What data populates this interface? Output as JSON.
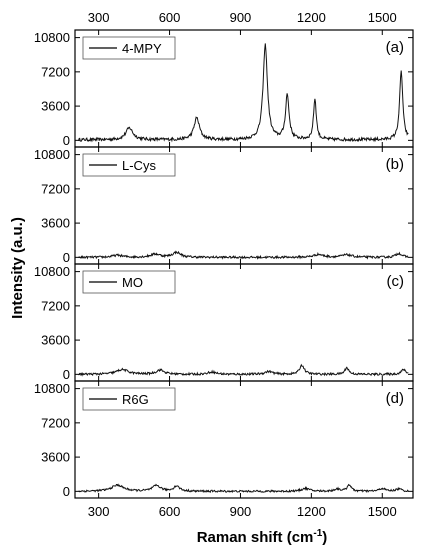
{
  "chart_data": {
    "type": "line",
    "xlabel_main": "Raman shift (cm",
    "xlabel_sup": "-1",
    "xlabel_close": ")",
    "ylabel": "Intensity (a.u.)",
    "xlim": [
      200,
      1630
    ],
    "x_ticks": [
      300,
      600,
      900,
      1200,
      1500
    ],
    "x_tick_labels": [
      "300",
      "600",
      "900",
      "1200",
      "1500"
    ],
    "y_ticks": [
      0,
      3600,
      7200,
      10800
    ],
    "y_tick_labels": [
      "0",
      "3600",
      "7200",
      "10800"
    ],
    "ylim": [
      -700,
      11600
    ],
    "panels": [
      {
        "letter": "(a)",
        "legend": "4-MPY",
        "baseline": 60,
        "noise": 160,
        "peaks": [
          {
            "x": 430,
            "amp": 1250,
            "w": 18
          },
          {
            "x": 715,
            "amp": 2300,
            "w": 14
          },
          {
            "x": 1005,
            "amp": 9950,
            "w": 11
          },
          {
            "x": 1098,
            "amp": 4700,
            "w": 9
          },
          {
            "x": 1215,
            "amp": 4300,
            "w": 7
          },
          {
            "x": 1580,
            "amp": 7200,
            "w": 8
          }
        ]
      },
      {
        "letter": "(b)",
        "legend": "L-Cys",
        "baseline": 0,
        "noise": 110,
        "peaks": [
          {
            "x": 380,
            "amp": 220,
            "w": 25
          },
          {
            "x": 540,
            "amp": 330,
            "w": 25
          },
          {
            "x": 630,
            "amp": 520,
            "w": 20
          },
          {
            "x": 1230,
            "amp": 300,
            "w": 25
          },
          {
            "x": 1350,
            "amp": 260,
            "w": 25
          },
          {
            "x": 1570,
            "amp": 420,
            "w": 15
          }
        ]
      },
      {
        "letter": "(c)",
        "legend": "MO",
        "baseline": 0,
        "noise": 110,
        "peaks": [
          {
            "x": 400,
            "amp": 500,
            "w": 30
          },
          {
            "x": 560,
            "amp": 450,
            "w": 20
          },
          {
            "x": 780,
            "amp": 250,
            "w": 20
          },
          {
            "x": 1020,
            "amp": 300,
            "w": 20
          },
          {
            "x": 1160,
            "amp": 950,
            "w": 12
          },
          {
            "x": 1350,
            "amp": 700,
            "w": 10
          },
          {
            "x": 1590,
            "amp": 500,
            "w": 12
          }
        ]
      },
      {
        "letter": "(d)",
        "legend": "R6G",
        "baseline": 0,
        "noise": 100,
        "peaks": [
          {
            "x": 380,
            "amp": 650,
            "w": 30
          },
          {
            "x": 545,
            "amp": 600,
            "w": 20
          },
          {
            "x": 630,
            "amp": 550,
            "w": 15
          },
          {
            "x": 1175,
            "amp": 300,
            "w": 20
          },
          {
            "x": 1310,
            "amp": 250,
            "w": 15
          },
          {
            "x": 1360,
            "amp": 700,
            "w": 10
          },
          {
            "x": 1500,
            "amp": 300,
            "w": 15
          },
          {
            "x": 1570,
            "amp": 250,
            "w": 15
          }
        ]
      }
    ]
  }
}
